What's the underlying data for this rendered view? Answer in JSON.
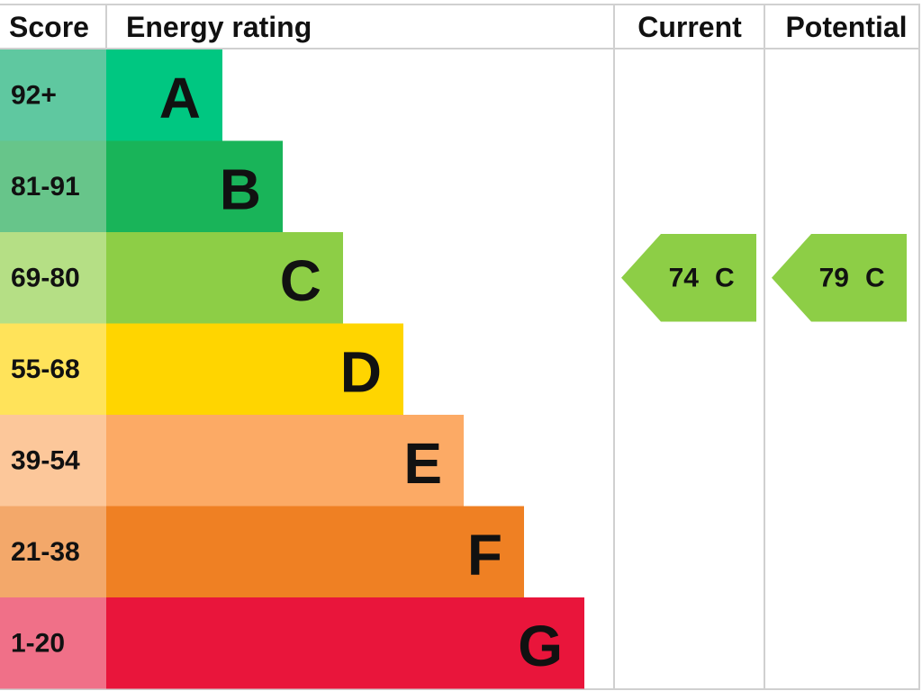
{
  "header": {
    "score": "Score",
    "rating": "Energy rating",
    "current": "Current",
    "potential": "Potential"
  },
  "bands": [
    {
      "score": "92+",
      "letter": "A",
      "color": "#00c781",
      "score_color": "#5fc8a0"
    },
    {
      "score": "81-91",
      "letter": "B",
      "color": "#19b459",
      "score_color": "#67c58a"
    },
    {
      "score": "69-80",
      "letter": "C",
      "color": "#8dce46",
      "score_color": "#b5df85"
    },
    {
      "score": "55-68",
      "letter": "D",
      "color": "#ffd500",
      "score_color": "#ffe35a"
    },
    {
      "score": "39-54",
      "letter": "E",
      "color": "#fcaa65",
      "score_color": "#fcc79a"
    },
    {
      "score": "21-38",
      "letter": "F",
      "color": "#ef8023",
      "score_color": "#f3a86a"
    },
    {
      "score": "1-20",
      "letter": "G",
      "color": "#e9153b",
      "score_color": "#f07088"
    }
  ],
  "current": {
    "score": "74",
    "rating": "C",
    "color": "#8dce46"
  },
  "potential": {
    "score": "79",
    "rating": "C",
    "color": "#8dce46"
  }
}
